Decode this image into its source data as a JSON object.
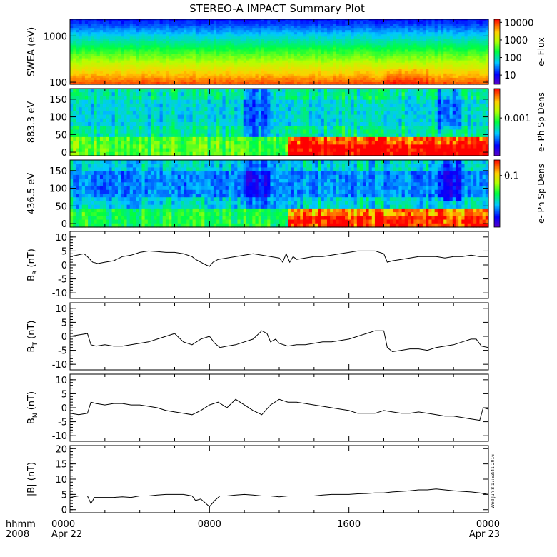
{
  "title": "STEREO-A IMPACT Summary Plot",
  "timestamp": "Wed Jun  8 17:53:41 2016",
  "time_axis": {
    "row1_label": "hhmm",
    "row2_label": "2008",
    "ticks": [
      {
        "hour": 0,
        "label": "0000",
        "date": "Apr 22"
      },
      {
        "hour": 8,
        "label": "0800",
        "date": ""
      },
      {
        "hour": 16,
        "label": "1600",
        "date": ""
      },
      {
        "hour": 24,
        "label": "0000",
        "date": "Apr 23"
      }
    ]
  },
  "chart_data": [
    {
      "type": "heatmap",
      "ylabel": "SWEA (eV)",
      "yscale": "log",
      "ylim": [
        90,
        2300
      ],
      "yticks": [
        {
          "value": 100,
          "label": "100"
        },
        {
          "value": 1000,
          "label": "1000"
        }
      ],
      "colorbar": {
        "label": "e- Flux",
        "scale": "log",
        "range": [
          3,
          15000
        ],
        "ticks": [
          {
            "value": 10,
            "label": "10"
          },
          {
            "value": 100,
            "label": "100"
          },
          {
            "value": 1000,
            "label": "1000"
          },
          {
            "value": 10000,
            "label": "10000"
          }
        ]
      }
    },
    {
      "type": "heatmap",
      "ylabel": "883.3 eV",
      "ylim": [
        -10,
        180
      ],
      "yticks": [
        {
          "value": 0,
          "label": "0"
        },
        {
          "value": 50,
          "label": "50"
        },
        {
          "value": 100,
          "label": "100"
        },
        {
          "value": 150,
          "label": "150"
        }
      ],
      "colorbar": {
        "label": "e- Ph Sp Dens",
        "scale": "log",
        "range": [
          0.0001,
          0.006
        ],
        "ticks": [
          {
            "value": 0.001,
            "label": "0.001"
          }
        ]
      }
    },
    {
      "type": "heatmap",
      "ylabel": "436.5 eV",
      "ylim": [
        -10,
        180
      ],
      "yticks": [
        {
          "value": 0,
          "label": "0"
        },
        {
          "value": 50,
          "label": "50"
        },
        {
          "value": 100,
          "label": "100"
        },
        {
          "value": 150,
          "label": "150"
        }
      ],
      "colorbar": {
        "label": "e- Ph Sp Dens",
        "scale": "log",
        "range": [
          0.01,
          0.2
        ],
        "ticks": [
          {
            "value": 0.1,
            "label": "0.1"
          }
        ]
      }
    },
    {
      "type": "line",
      "ylabel": "B",
      "ylabel_sub": "R",
      "ylabel_unit": "(nT)",
      "ylim": [
        -12,
        12
      ],
      "yticks": [
        {
          "value": -10,
          "label": "-10"
        },
        {
          "value": -5,
          "label": "-5"
        },
        {
          "value": 0,
          "label": "0"
        },
        {
          "value": 5,
          "label": "5"
        },
        {
          "value": 10,
          "label": "10"
        }
      ],
      "x": [
        0,
        0.4,
        0.8,
        1.0,
        1.3,
        1.6,
        2.0,
        2.5,
        3,
        3.5,
        4,
        4.5,
        5,
        5.5,
        6,
        6.5,
        7,
        7.2,
        7.5,
        7.8,
        8.0,
        8.2,
        8.5,
        9,
        9.5,
        10,
        10.5,
        11,
        11.5,
        12,
        12.2,
        12.4,
        12.6,
        12.8,
        13,
        13.5,
        14,
        14.5,
        15,
        15.5,
        16,
        16.5,
        17,
        17.5,
        18,
        18.2,
        18.5,
        19,
        19.5,
        20,
        20.5,
        21,
        21.5,
        22,
        22.5,
        23,
        23.5,
        24
      ],
      "values": [
        3,
        3.5,
        4,
        3,
        1,
        0.5,
        1,
        1.5,
        3,
        3.5,
        4.5,
        5,
        4.8,
        4.5,
        4.5,
        4,
        3,
        2,
        1,
        0,
        -0.5,
        1,
        2,
        2.5,
        3,
        3.5,
        4,
        3.5,
        3,
        2.5,
        1,
        4,
        1,
        3,
        2,
        2.5,
        3,
        3,
        3.5,
        4,
        4.5,
        5,
        5,
        5,
        4,
        1,
        1.5,
        2,
        2.5,
        3,
        3,
        3,
        2.5,
        3,
        3,
        3.5,
        3,
        3
      ]
    },
    {
      "type": "line",
      "ylabel": "B",
      "ylabel_sub": "T",
      "ylabel_unit": "(nT)",
      "ylim": [
        -12,
        12
      ],
      "yticks": [
        {
          "value": -10,
          "label": "-10"
        },
        {
          "value": -5,
          "label": "-5"
        },
        {
          "value": 0,
          "label": "0"
        },
        {
          "value": 5,
          "label": "5"
        },
        {
          "value": 10,
          "label": "10"
        }
      ],
      "x": [
        0,
        0.5,
        1.0,
        1.2,
        1.5,
        2,
        2.5,
        3,
        3.5,
        4,
        4.5,
        5,
        5.5,
        6,
        6.5,
        7,
        7.5,
        8,
        8.3,
        8.6,
        9,
        9.5,
        10,
        10.5,
        11,
        11.3,
        11.5,
        11.8,
        12,
        12.5,
        13,
        13.5,
        14,
        14.5,
        15,
        15.5,
        16,
        16.5,
        17,
        17.5,
        18,
        18.2,
        18.5,
        19,
        19.5,
        20,
        20.5,
        21,
        21.5,
        22,
        22.5,
        23,
        23.3,
        23.6,
        24
      ],
      "values": [
        0,
        0.5,
        1,
        -3,
        -3.5,
        -3,
        -3.5,
        -3.5,
        -3,
        -2.5,
        -2,
        -1,
        0,
        1,
        -2,
        -3,
        -1,
        0,
        -2.5,
        -4,
        -3.5,
        -3,
        -2,
        -1,
        2,
        1,
        -2,
        -1,
        -2.5,
        -3.5,
        -3,
        -3,
        -2.5,
        -2,
        -2,
        -1.5,
        -1,
        0,
        1,
        2,
        2,
        -4,
        -5.5,
        -5,
        -4.5,
        -4.5,
        -5,
        -4,
        -3.5,
        -3,
        -2,
        -1,
        -1,
        -3.5,
        -4
      ]
    },
    {
      "type": "line",
      "ylabel": "B",
      "ylabel_sub": "N",
      "ylabel_unit": "(nT)",
      "ylim": [
        -12,
        12
      ],
      "yticks": [
        {
          "value": -10,
          "label": "-10"
        },
        {
          "value": -5,
          "label": "-5"
        },
        {
          "value": 0,
          "label": "0"
        },
        {
          "value": 5,
          "label": "5"
        },
        {
          "value": 10,
          "label": "10"
        }
      ],
      "x": [
        0,
        0.5,
        1,
        1.2,
        1.5,
        2,
        2.5,
        3,
        3.5,
        4,
        4.5,
        5,
        5.5,
        6,
        6.5,
        7,
        7.5,
        8,
        8.5,
        9,
        9.5,
        10,
        10.5,
        11,
        11.5,
        12,
        12.5,
        13,
        13.5,
        14,
        14.5,
        15,
        15.5,
        16,
        16.5,
        17,
        17.5,
        18,
        18.5,
        19,
        19.5,
        20,
        20.5,
        21,
        21.5,
        22,
        22.5,
        23,
        23.5,
        23.7,
        24
      ],
      "values": [
        -2,
        -2.5,
        -2,
        2,
        1.5,
        1,
        1.5,
        1.5,
        1,
        1,
        0.5,
        0,
        -1,
        -1.5,
        -2,
        -2.5,
        -1,
        1,
        2,
        0,
        3,
        1,
        -1,
        -2.5,
        1,
        3,
        2,
        2,
        1.5,
        1,
        0.5,
        0,
        -0.5,
        -1,
        -2,
        -2,
        -2,
        -1,
        -1.5,
        -2,
        -2,
        -1.5,
        -2,
        -2.5,
        -3,
        -3,
        -3.5,
        -4,
        -4.5,
        0,
        -0.5
      ]
    },
    {
      "type": "line",
      "ylabel": "|B|",
      "ylabel_sub": "",
      "ylabel_unit": "(nT)",
      "ylim": [
        -1,
        21
      ],
      "yticks": [
        {
          "value": 0,
          "label": "0"
        },
        {
          "value": 5,
          "label": "5"
        },
        {
          "value": 10,
          "label": "10"
        },
        {
          "value": 15,
          "label": "15"
        },
        {
          "value": 20,
          "label": "20"
        }
      ],
      "x": [
        0,
        0.5,
        1,
        1.2,
        1.4,
        1.8,
        2.5,
        3,
        3.5,
        4,
        4.5,
        5,
        5.5,
        6,
        6.5,
        7,
        7.2,
        7.5,
        7.8,
        8.0,
        8.3,
        8.6,
        9,
        9.5,
        10,
        10.5,
        11,
        11.5,
        12,
        12.5,
        13,
        13.5,
        14,
        14.5,
        15,
        15.5,
        16,
        16.5,
        17,
        17.5,
        18,
        18.5,
        19,
        19.5,
        20,
        20.5,
        21,
        21.5,
        22,
        22.5,
        23,
        23.5,
        24
      ],
      "values": [
        4,
        4.5,
        4.5,
        2,
        4,
        4,
        4,
        4.2,
        4,
        4.5,
        4.5,
        4.8,
        5,
        5,
        5,
        4.5,
        3,
        3.5,
        2,
        1,
        3,
        4.5,
        4.5,
        4.8,
        5,
        4.8,
        4.5,
        4.5,
        4.2,
        4.5,
        4.5,
        4.5,
        4.5,
        4.8,
        5,
        5,
        5,
        5.2,
        5.3,
        5.5,
        5.5,
        5.8,
        6,
        6.2,
        6.5,
        6.5,
        6.8,
        6.5,
        6.2,
        6,
        5.8,
        5.5,
        5
      ]
    }
  ]
}
